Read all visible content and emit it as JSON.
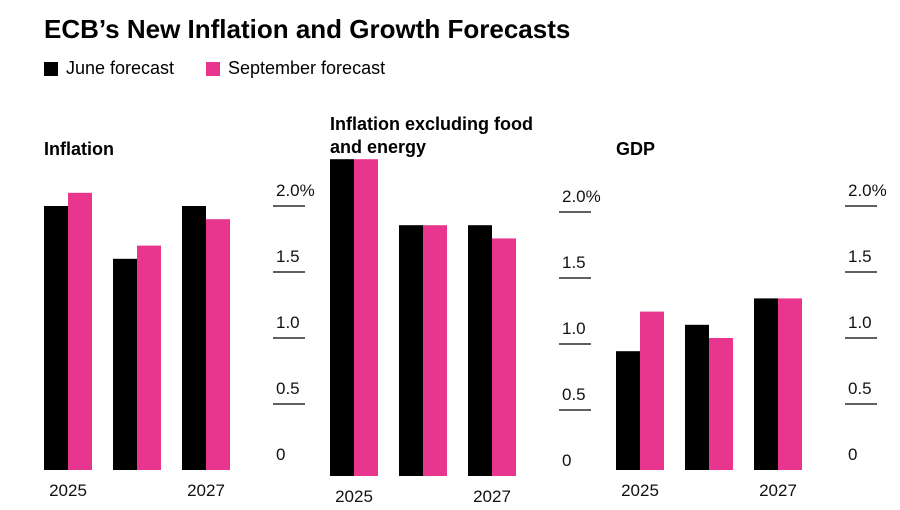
{
  "title": "ECB’s New Inflation and Growth Forecasts",
  "legend": [
    {
      "name": "June forecast",
      "color": "#000000"
    },
    {
      "name": "September forecast",
      "color": "#e8368f"
    }
  ],
  "chart_data": [
    {
      "type": "bar",
      "title": "Inflation",
      "categories": [
        "2025",
        null,
        "2027"
      ],
      "series": [
        {
          "values": [
            2.0,
            1.6,
            2.0
          ]
        },
        {
          "values": [
            2.1,
            1.7,
            1.9
          ]
        }
      ],
      "ylim": [
        0,
        2.1
      ],
      "yticks": [
        0,
        0.5,
        {
          "value": 1,
          "label": "1.0"
        },
        1.5,
        {
          "value": 2,
          "label": "2.0%"
        }
      ]
    },
    {
      "type": "bar",
      "title": "Inflation excluding food and energy",
      "categories": [
        "2025",
        null,
        "2027"
      ],
      "series": [
        {
          "values": [
            2.4,
            1.9,
            1.9
          ]
        },
        {
          "values": [
            2.4,
            1.9,
            1.8
          ]
        }
      ],
      "ylim": [
        0,
        2.4
      ],
      "yticks": [
        0,
        0.5,
        {
          "value": 1,
          "label": "1.0"
        },
        1.5,
        {
          "value": 2,
          "label": "2.0%"
        }
      ]
    },
    {
      "type": "bar",
      "title": "GDP",
      "categories": [
        "2025",
        null,
        "2027"
      ],
      "series": [
        {
          "values": [
            0.9,
            1.1,
            1.3
          ]
        },
        {
          "values": [
            1.2,
            1.0,
            1.3
          ]
        }
      ],
      "ylim": [
        0,
        2.1
      ],
      "yticks": [
        0,
        0.5,
        {
          "value": 1,
          "label": "1.0"
        },
        1.5,
        {
          "value": 2,
          "label": "2.0%"
        }
      ]
    }
  ]
}
